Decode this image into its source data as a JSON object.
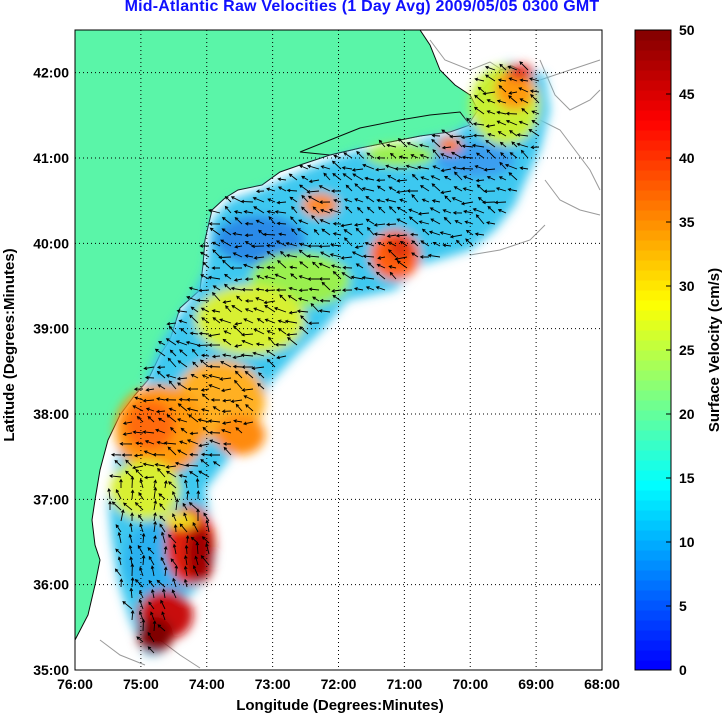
{
  "title": "Mid-Atlantic Raw Velocities (1 Day Avg) 2009/05/05 0300 GMT",
  "map": {
    "xlabel": "Longitude (Degrees:Minutes)",
    "ylabel": "Latitude (Degrees:Minutes)",
    "lon_range": [
      -76,
      -68
    ],
    "lat_range": [
      35,
      42.5
    ],
    "lon_ticks": [
      "76:00",
      "75:00",
      "74:00",
      "73:00",
      "72:00",
      "71:00",
      "70:00",
      "69:00",
      "68:00"
    ],
    "lat_ticks": [
      "35:00",
      "36:00",
      "37:00",
      "38:00",
      "39:00",
      "40:00",
      "41:00",
      "42:00"
    ],
    "land_color": "#5af5a8",
    "grid": "dotted"
  },
  "colorbar": {
    "label": "Surface Velocity (cm/s)",
    "ticks": [
      "0",
      "5",
      "10",
      "15",
      "20",
      "25",
      "30",
      "35",
      "40",
      "45",
      "50"
    ],
    "min": 0,
    "max": 50,
    "colormap": "jet"
  }
}
